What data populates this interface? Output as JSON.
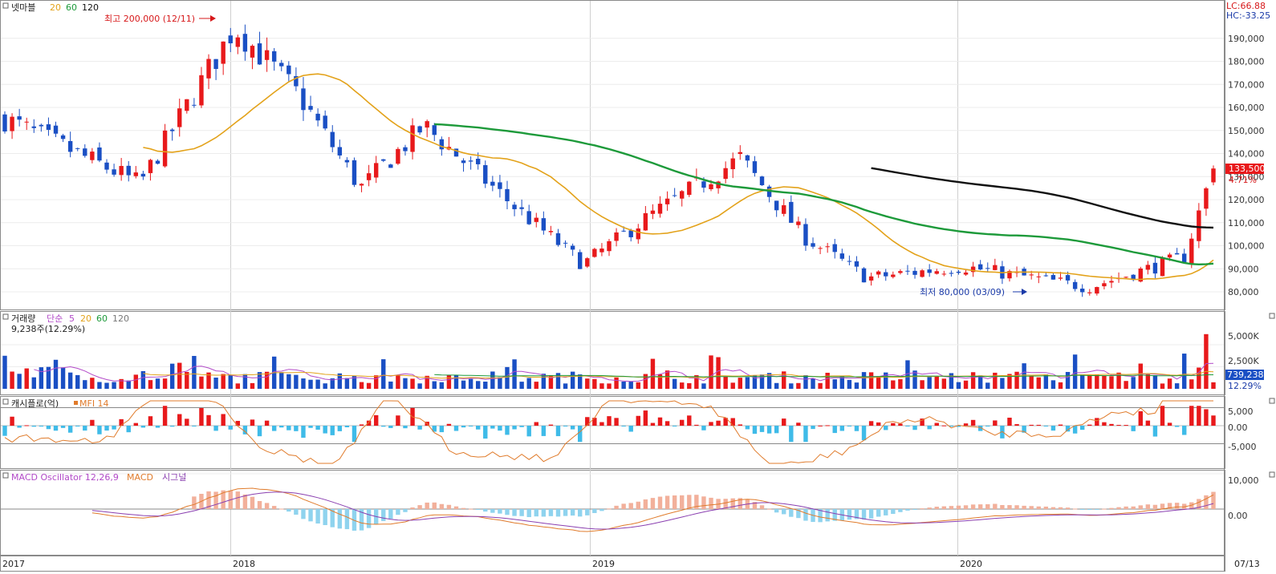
{
  "colors": {
    "up": "#e8191b",
    "down": "#1a4fc4",
    "ma20": "#e3a21a",
    "ma60": "#1d9a3a",
    "ma120": "#111111",
    "vol5": "#b24ac8",
    "mfi": "#e07b2b",
    "cashPos": "#e8191b",
    "cashNeg": "#3fbbe8",
    "macd": "#8a3fb0",
    "signal": "#e07b2b",
    "oscPos": "#f2b09b",
    "oscNeg": "#8fd3ee"
  },
  "price_panel": {
    "legend": {
      "name": "넷마블",
      "ma1": "20",
      "ma2": "60",
      "ma3": "120"
    },
    "hi_label": "최고 200,000 (12/11)",
    "lo_label": "최저 80,000 (03/09)",
    "lc_label": "LC:66.88",
    "hc_label": "HC:-33.25",
    "last_price": "133,500",
    "last_pct": "4.71%",
    "ticks": [
      "190,000",
      "180,000",
      "170,000",
      "160,000",
      "150,000",
      "140,000",
      "130,000",
      "120,000",
      "110,000",
      "100,000",
      "90,000",
      "80,000"
    ]
  },
  "volume_panel": {
    "legend": {
      "name": "거래량",
      "type": "단순",
      "ma1": "5",
      "ma2": "20",
      "ma3": "60",
      "ma4": "120"
    },
    "sub": "9,238주(12.29%)",
    "ticks": [
      "5,000K",
      "2,500K"
    ],
    "last_value": "739,238",
    "last_pct": "12.29%"
  },
  "cash_panel": {
    "legend": {
      "name": "캐시플로(억)",
      "mfi": "MFI 14"
    },
    "ticks": [
      "5,000",
      "0.00",
      "-5,000"
    ]
  },
  "macd_panel": {
    "legend": {
      "osc": "MACD Oscillator 12,26,9",
      "macd": "MACD",
      "signal": "시그널"
    },
    "ticks": [
      "10,000",
      "0.00"
    ]
  },
  "xaxis": {
    "labels": [
      "2017",
      "2018",
      "2019",
      "2020"
    ],
    "end_label": "07/13"
  },
  "chart_data": {
    "type": "candlestick",
    "interval": "weekly",
    "x_range": [
      "2017-05",
      "2020-07-13"
    ],
    "y_range": [
      75000,
      200000
    ],
    "high": {
      "value": 200000,
      "date": "12/11"
    },
    "low": {
      "value": 80000,
      "date": "03/09"
    },
    "last_close": 133500,
    "last_change_pct": 4.71,
    "moving_averages": [
      20,
      60,
      120
    ],
    "approx_close_path": [
      {
        "x": "2017-05",
        "y": 155000
      },
      {
        "x": "2017-09",
        "y": 127000
      },
      {
        "x": "2017-12",
        "y": 195000
      },
      {
        "x": "2018-02",
        "y": 165000
      },
      {
        "x": "2018-04",
        "y": 125000
      },
      {
        "x": "2018-06",
        "y": 152000
      },
      {
        "x": "2018-09",
        "y": 115000
      },
      {
        "x": "2018-11",
        "y": 92000
      },
      {
        "x": "2019-01",
        "y": 112000
      },
      {
        "x": "2019-04",
        "y": 138000
      },
      {
        "x": "2019-06",
        "y": 104000
      },
      {
        "x": "2019-08",
        "y": 86000
      },
      {
        "x": "2019-11",
        "y": 91000
      },
      {
        "x": "2020-03",
        "y": 82000
      },
      {
        "x": "2020-06",
        "y": 95000
      },
      {
        "x": "2020-07-13",
        "y": 133500
      }
    ]
  }
}
